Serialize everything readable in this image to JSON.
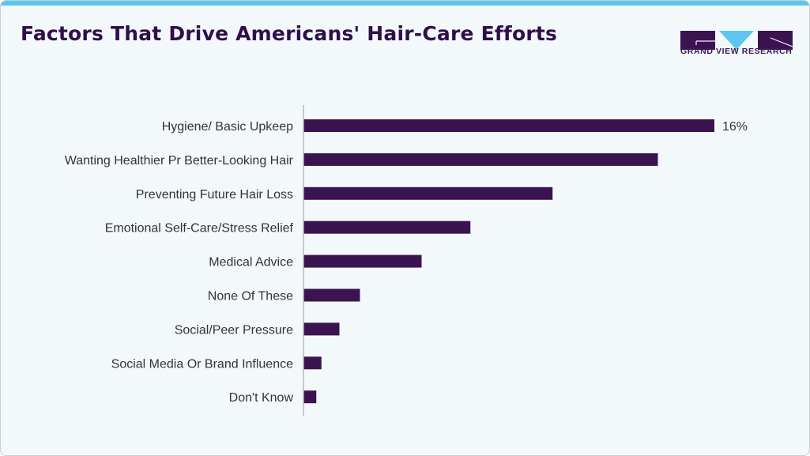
{
  "title": "Factors That Drive Americans' Hair-Care Efforts",
  "logo": {
    "text": "GRAND VIEW RESEARCH",
    "colors": {
      "dark": "#3b1350",
      "accent": "#5cc6f0"
    }
  },
  "colors": {
    "bar": "#3b1350",
    "top_border": "#5cc6f0",
    "title": "#2f0f4b"
  },
  "chart_data": {
    "type": "bar",
    "orientation": "horizontal",
    "categories": [
      "Hygiene/ Basic Upkeep",
      "Wanting Healthier Pr Better-Looking Hair",
      "Preventing Future Hair Loss",
      "Emotional Self-Care/Stress Relief",
      "Medical Advice",
      "None Of These",
      "Social/Peer Pressure",
      "Social Media Or Brand Influence",
      "Don't Know"
    ],
    "values": [
      16,
      13.8,
      9.7,
      6.5,
      4.6,
      2.2,
      1.4,
      0.7,
      0.5
    ],
    "unit": "%",
    "data_labels": [
      "16%",
      "",
      "",
      "",
      "",
      "",
      "",
      "",
      ""
    ],
    "xlim": [
      0,
      16
    ],
    "grid": false,
    "legend": "none"
  }
}
